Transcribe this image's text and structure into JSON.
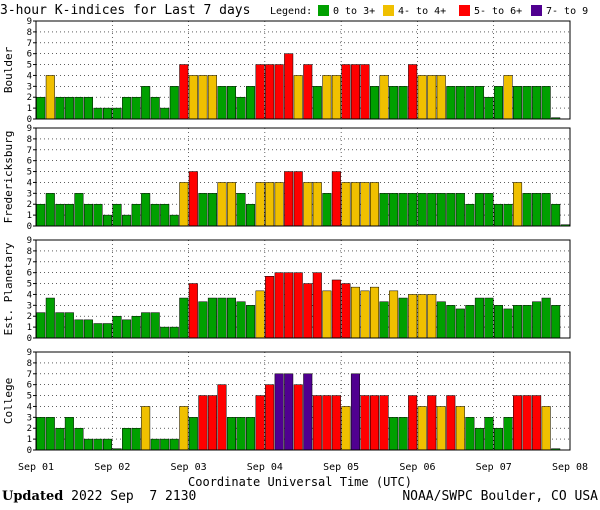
{
  "title": "3-hour K-indices for Last 7 days",
  "legend": {
    "label": "Legend:",
    "items": [
      {
        "label": "0 to 3+",
        "color": "#00a000"
      },
      {
        "label": "4- to 4+",
        "color": "#f0c000"
      },
      {
        "label": "5- to 6+",
        "color": "#ff0000"
      },
      {
        "label": "7- to 9",
        "color": "#500090"
      }
    ]
  },
  "footer": {
    "updated_label": "Updated",
    "updated_value": "2022 Sep  7 2130",
    "credit": "NOAA/SWPC Boulder, CO USA"
  },
  "chart_data": {
    "type": "bar",
    "xlabel": "Coordinate Universal Time (UTC)",
    "x_ticks": [
      "Sep 01",
      "Sep 02",
      "Sep 03",
      "Sep 04",
      "Sep 05",
      "Sep 06",
      "Sep 07",
      "Sep 08"
    ],
    "ylim": [
      0,
      9
    ],
    "y_ticks": [
      0,
      1,
      2,
      3,
      4,
      5,
      6,
      7,
      8,
      9
    ],
    "bins_per_day": 8,
    "grid": "dotted",
    "panels": [
      {
        "name": "Boulder",
        "values": [
          2,
          4,
          2,
          2,
          2,
          2,
          1,
          1,
          1,
          2,
          2,
          3,
          2,
          1,
          3,
          5,
          4,
          4,
          4,
          3,
          3,
          2,
          3,
          5,
          5,
          5,
          6,
          4,
          5,
          3,
          4,
          4,
          5,
          5,
          5,
          3,
          4,
          3,
          3,
          5,
          4,
          4,
          4,
          3,
          3,
          3,
          3,
          2,
          3,
          4,
          3,
          3,
          3,
          3,
          0
        ]
      },
      {
        "name": "Fredericksburg",
        "values": [
          2,
          3,
          2,
          2,
          3,
          2,
          2,
          1,
          2,
          1,
          2,
          3,
          2,
          2,
          1,
          4,
          5,
          3,
          3,
          4,
          4,
          3,
          2,
          4,
          4,
          4,
          5,
          5,
          4,
          4,
          3,
          5,
          4,
          4,
          4,
          4,
          3,
          3,
          3,
          3,
          3,
          3,
          3,
          3,
          3,
          2,
          3,
          3,
          2,
          2,
          4,
          3,
          3,
          3,
          2,
          0
        ]
      },
      {
        "name": "Est. Planetary",
        "values": [
          2.33,
          3.67,
          2.33,
          2.33,
          1.67,
          1.67,
          1.33,
          1.33,
          2,
          1.67,
          2,
          2.33,
          2.33,
          1,
          1,
          3.67,
          5,
          3.33,
          3.67,
          3.67,
          3.67,
          3.33,
          3,
          4.33,
          5.67,
          6,
          6,
          6,
          5,
          6,
          4.33,
          5.33,
          5,
          4.67,
          4.33,
          4.67,
          3.33,
          4.33,
          3.67,
          4,
          4,
          4,
          3.33,
          3,
          2.67,
          3,
          3.67,
          3.67,
          3,
          2.67,
          3,
          3,
          3.33,
          3.67,
          3
        ]
      },
      {
        "name": "College",
        "values": [
          3,
          3,
          2,
          3,
          2,
          1,
          1,
          1,
          0,
          2,
          2,
          4,
          1,
          1,
          1,
          4,
          3,
          5,
          5,
          6,
          3,
          3,
          3,
          5,
          6,
          7,
          7,
          6,
          7,
          5,
          5,
          5,
          4,
          7,
          5,
          5,
          5,
          3,
          3,
          5,
          4,
          5,
          4,
          5,
          4,
          3,
          2,
          3,
          2,
          3,
          5,
          5,
          5,
          4,
          0
        ]
      }
    ]
  }
}
